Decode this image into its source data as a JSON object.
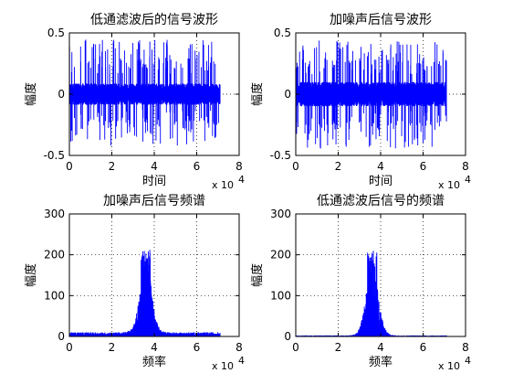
{
  "chart_data": [
    {
      "type": "line",
      "title": "低通滤波后的信号波形",
      "xlabel": "时间",
      "ylabel": "幅度",
      "x_multiplier": "x 10",
      "x_multiplier_exp": "4",
      "xlim": [
        0,
        8
      ],
      "ylim": [
        -0.5,
        0.5
      ],
      "xticks": [
        "0",
        "2",
        "4",
        "6",
        "8"
      ],
      "yticks": [
        "-0.5",
        "0",
        "0.5"
      ],
      "yticks_values": [
        -0.5,
        0,
        0.5
      ],
      "grid": true,
      "color": "#0000ff",
      "signal": {
        "x_start": 0,
        "x_end": 7.1,
        "band": 0.08,
        "peak": 0.45,
        "trough": -0.42
      }
    },
    {
      "type": "line",
      "title": "加噪声后信号波形",
      "xlabel": "时间",
      "ylabel": "幅度",
      "x_multiplier": "x 10",
      "x_multiplier_exp": "4",
      "xlim": [
        0,
        8
      ],
      "ylim": [
        -0.5,
        0.5
      ],
      "xticks": [
        "0",
        "2",
        "4",
        "6",
        "8"
      ],
      "yticks": [
        "-0.5",
        "0",
        "0.5"
      ],
      "yticks_values": [
        -0.5,
        0,
        0.5
      ],
      "grid": true,
      "color": "#0000ff",
      "signal": {
        "x_start": 0,
        "x_end": 7.1,
        "band": 0.09,
        "peak": 0.44,
        "trough": -0.45
      }
    },
    {
      "type": "line",
      "title": "加噪声后信号频谱",
      "xlabel": "频率",
      "ylabel": "幅度",
      "x_multiplier": "x 10",
      "x_multiplier_exp": "4",
      "xlim": [
        0,
        8
      ],
      "ylim": [
        0,
        300
      ],
      "xticks": [
        "0",
        "2",
        "4",
        "6",
        "8"
      ],
      "yticks": [
        "0",
        "100",
        "200",
        "300"
      ],
      "yticks_values": [
        0,
        100,
        200,
        300
      ],
      "grid": true,
      "color": "#0000ff",
      "spectrum": {
        "x_end": 7.1,
        "center": 3.6,
        "width": 0.35,
        "peak": 215,
        "floor": 8
      }
    },
    {
      "type": "line",
      "title": "低通滤波后信号的频谱",
      "xlabel": "频率",
      "ylabel": "幅度",
      "x_multiplier": "x 10",
      "x_multiplier_exp": "4",
      "xlim": [
        0,
        8
      ],
      "ylim": [
        0,
        300
      ],
      "xticks": [
        "0",
        "2",
        "4",
        "6",
        "8"
      ],
      "yticks": [
        "0",
        "100",
        "200",
        "300"
      ],
      "yticks_values": [
        0,
        100,
        200,
        300
      ],
      "grid": true,
      "color": "#0000ff",
      "spectrum": {
        "x_end": 7.1,
        "center": 3.6,
        "width": 0.35,
        "peak": 215,
        "floor": 2
      }
    }
  ]
}
